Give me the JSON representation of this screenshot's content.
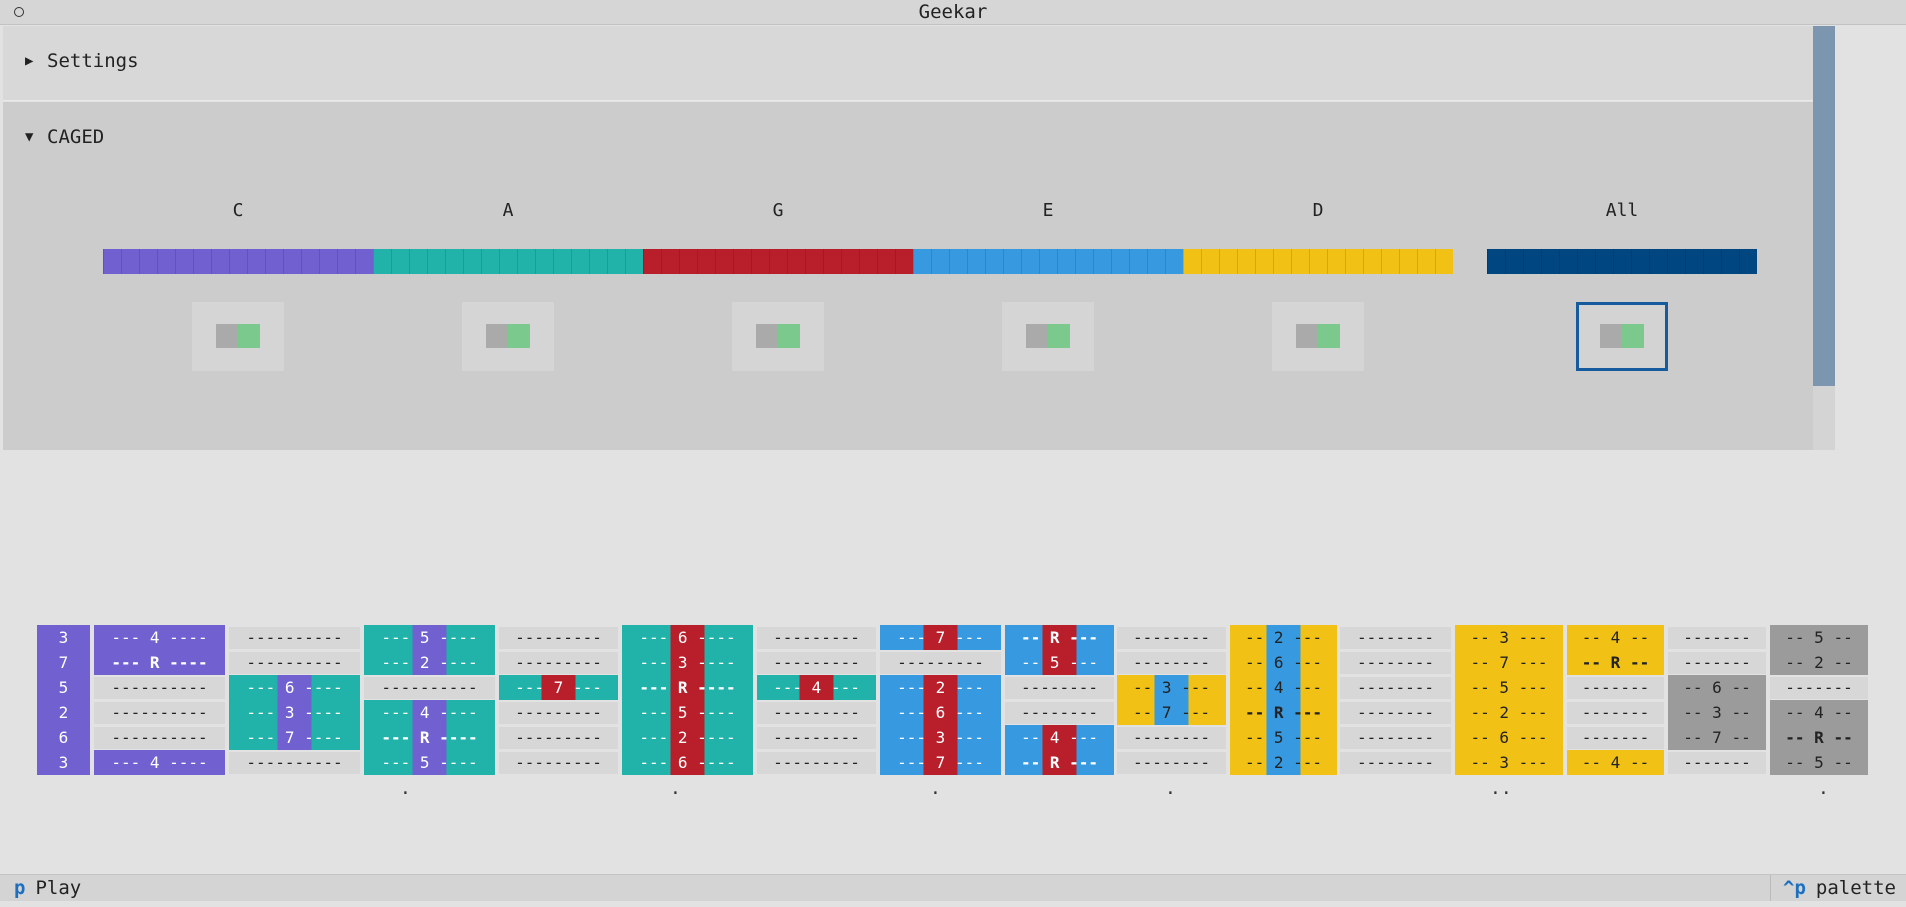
{
  "window": {
    "title": "Geekar"
  },
  "settings": {
    "label": "Settings",
    "arrow": "▶"
  },
  "caged": {
    "label": "CAGED",
    "arrow": "▼",
    "shapes": [
      {
        "name": "C",
        "color": "#7160d0",
        "enabled": true
      },
      {
        "name": "A",
        "color": "#21b3aa",
        "enabled": true
      },
      {
        "name": "G",
        "color": "#b81f2a",
        "enabled": true
      },
      {
        "name": "E",
        "color": "#3799df",
        "enabled": true
      },
      {
        "name": "D",
        "color": "#f2c115",
        "enabled": true
      }
    ],
    "all": {
      "name": "All",
      "color": "#004680",
      "enabled": true,
      "focused": true
    }
  },
  "fretboard": {
    "open_strings": [
      "3",
      "7",
      "5",
      "2",
      "6",
      "3"
    ],
    "frets": [
      {
        "cells": [
          {
            "text": "--- 4 ----",
            "style": "purple"
          },
          {
            "text": "--- R ----",
            "style": "purple",
            "root": true
          },
          {
            "text": "----------",
            "style": "light"
          },
          {
            "text": "----------",
            "style": "light"
          },
          {
            "text": "----------",
            "style": "light"
          },
          {
            "text": "--- 4 ----",
            "style": "purple"
          }
        ]
      },
      {
        "cells": [
          {
            "text": "----------",
            "style": "light"
          },
          {
            "text": "----------",
            "style": "light"
          },
          {
            "text": "--- 6 ----",
            "style": "teal",
            "mid": "purple"
          },
          {
            "text": "--- 3 ----",
            "style": "teal",
            "mid": "purple"
          },
          {
            "text": "--- 7 ----",
            "style": "teal",
            "mid": "purple"
          },
          {
            "text": "----------",
            "style": "light"
          }
        ]
      },
      {
        "cells": [
          {
            "text": "--- 5 ----",
            "style": "teal",
            "mid": "purple"
          },
          {
            "text": "--- 2 ----",
            "style": "teal",
            "mid": "purple"
          },
          {
            "text": "----------",
            "style": "light"
          },
          {
            "text": "--- 4 ----",
            "style": "teal",
            "mid": "purple"
          },
          {
            "text": "--- R ----",
            "style": "teal",
            "mid": "purple",
            "root": true
          },
          {
            "text": "--- 5 ----",
            "style": "teal",
            "mid": "purple"
          }
        ]
      },
      {
        "cells": [
          {
            "text": "---------",
            "style": "light"
          },
          {
            "text": "---------",
            "style": "light"
          },
          {
            "text": "--- 7 ---",
            "style": "teal",
            "mid": "red"
          },
          {
            "text": "---------",
            "style": "light"
          },
          {
            "text": "---------",
            "style": "light"
          },
          {
            "text": "---------",
            "style": "light"
          }
        ]
      },
      {
        "cells": [
          {
            "text": "--- 6 ----",
            "style": "teal",
            "mid": "red"
          },
          {
            "text": "--- 3 ----",
            "style": "teal",
            "mid": "red"
          },
          {
            "text": "--- R ----",
            "style": "teal",
            "mid": "red",
            "root": true
          },
          {
            "text": "--- 5 ----",
            "style": "teal",
            "mid": "red"
          },
          {
            "text": "--- 2 ----",
            "style": "teal",
            "mid": "red"
          },
          {
            "text": "--- 6 ----",
            "style": "teal",
            "mid": "red"
          }
        ]
      },
      {
        "cells": [
          {
            "text": "---------",
            "style": "light"
          },
          {
            "text": "---------",
            "style": "light"
          },
          {
            "text": "--- 4 ---",
            "style": "teal",
            "mid": "red"
          },
          {
            "text": "---------",
            "style": "light"
          },
          {
            "text": "---------",
            "style": "light"
          },
          {
            "text": "---------",
            "style": "light"
          }
        ]
      },
      {
        "cells": [
          {
            "text": "--- 7 ---",
            "style": "blue",
            "mid": "red"
          },
          {
            "text": "---------",
            "style": "light"
          },
          {
            "text": "--- 2 ---",
            "style": "blue",
            "mid": "red"
          },
          {
            "text": "--- 6 ---",
            "style": "blue",
            "mid": "red"
          },
          {
            "text": "--- 3 ---",
            "style": "blue",
            "mid": "red"
          },
          {
            "text": "--- 7 ---",
            "style": "blue",
            "mid": "red"
          }
        ]
      },
      {
        "cells": [
          {
            "text": "-- R ---",
            "style": "blue",
            "mid": "red",
            "root": true
          },
          {
            "text": "-- 5 ---",
            "style": "blue",
            "mid": "red"
          },
          {
            "text": "--------",
            "style": "light"
          },
          {
            "text": "--------",
            "style": "light"
          },
          {
            "text": "-- 4 ---",
            "style": "blue",
            "mid": "red"
          },
          {
            "text": "-- R ---",
            "style": "blue",
            "mid": "red",
            "root": true
          }
        ]
      },
      {
        "cells": [
          {
            "text": "--------",
            "style": "light"
          },
          {
            "text": "--------",
            "style": "light"
          },
          {
            "text": "-- 3 ---",
            "style": "yellow",
            "mid": "blue"
          },
          {
            "text": "-- 7 ---",
            "style": "yellow",
            "mid": "blue"
          },
          {
            "text": "--------",
            "style": "light"
          },
          {
            "text": "--------",
            "style": "light"
          }
        ]
      },
      {
        "cells": [
          {
            "text": "-- 2 ---",
            "style": "yellow",
            "mid": "blue"
          },
          {
            "text": "-- 6 ---",
            "style": "yellow",
            "mid": "blue"
          },
          {
            "text": "-- 4 ---",
            "style": "yellow",
            "mid": "blue"
          },
          {
            "text": "-- R ---",
            "style": "yellow",
            "mid": "blue",
            "root": true
          },
          {
            "text": "-- 5 ---",
            "style": "yellow",
            "mid": "blue"
          },
          {
            "text": "-- 2 ---",
            "style": "yellow",
            "mid": "blue"
          }
        ]
      },
      {
        "cells": [
          {
            "text": "--------",
            "style": "light"
          },
          {
            "text": "--------",
            "style": "light"
          },
          {
            "text": "--------",
            "style": "light"
          },
          {
            "text": "--------",
            "style": "light"
          },
          {
            "text": "--------",
            "style": "light"
          },
          {
            "text": "--------",
            "style": "light"
          }
        ]
      },
      {
        "cells": [
          {
            "text": "-- 3 ---",
            "style": "yellow"
          },
          {
            "text": "-- 7 ---",
            "style": "yellow"
          },
          {
            "text": "-- 5 ---",
            "style": "yellow"
          },
          {
            "text": "-- 2 ---",
            "style": "yellow"
          },
          {
            "text": "-- 6 ---",
            "style": "yellow"
          },
          {
            "text": "-- 3 ---",
            "style": "yellow"
          }
        ]
      },
      {
        "cells": [
          {
            "text": "-- 4 --",
            "style": "yellow"
          },
          {
            "text": "-- R --",
            "style": "yellow",
            "root": true
          },
          {
            "text": "-------",
            "style": "light"
          },
          {
            "text": "-------",
            "style": "light"
          },
          {
            "text": "-------",
            "style": "light"
          },
          {
            "text": "-- 4 --",
            "style": "yellow"
          }
        ]
      },
      {
        "cells": [
          {
            "text": "-------",
            "style": "light"
          },
          {
            "text": "-------",
            "style": "light"
          },
          {
            "text": "-- 6 --",
            "style": "gray"
          },
          {
            "text": "-- 3 --",
            "style": "gray"
          },
          {
            "text": "-- 7 --",
            "style": "gray"
          },
          {
            "text": "-------",
            "style": "light"
          }
        ]
      },
      {
        "cells": [
          {
            "text": "-- 5 --",
            "style": "gray"
          },
          {
            "text": "-- 2 --",
            "style": "gray"
          },
          {
            "text": "-------",
            "style": "light"
          },
          {
            "text": "-- 4 --",
            "style": "gray"
          },
          {
            "text": "-- R --",
            "style": "gray",
            "root": true
          },
          {
            "text": "-- 5 --",
            "style": "gray"
          }
        ]
      }
    ],
    "markers": [
      ".",
      ".",
      ".",
      ".",
      "..",
      "."
    ]
  },
  "statusbar": {
    "play_key": "p",
    "play_label": "Play",
    "palette_key": "^p",
    "palette_label": "palette"
  }
}
